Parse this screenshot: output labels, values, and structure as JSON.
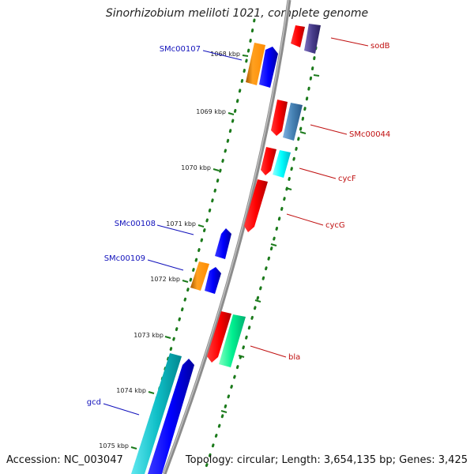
{
  "title": "Sinorhizobium meliloti 1021, complete genome",
  "footer": {
    "accession": "Accession: NC_003047",
    "topology": "Topology: circular; Length: 3,654,135 bp; Genes: 3,425"
  },
  "colors": {
    "backbone": "#8c8c8c",
    "tick": "#1b7a1b",
    "forward_label": "#1010bb",
    "reverse_label": "#c01010"
  },
  "ticks": [
    "1068 kbp",
    "1069 kbp",
    "1070 kbp",
    "1071 kbp",
    "1072 kbp",
    "1073 kbp",
    "1074 kbp",
    "1075 kbp"
  ],
  "genes_forward": [
    {
      "label": "SMc00107",
      "color": "#2020e0"
    },
    {
      "label": "SMc00108",
      "color": "#2020e0"
    },
    {
      "label": "SMc00109",
      "color": "#2020e0"
    },
    {
      "label": "gcd",
      "color": "#2020e0"
    }
  ],
  "genes_reverse": [
    {
      "label": "sodB",
      "color": "#e00000"
    },
    {
      "label": "SMc00044",
      "color": "#e00000"
    },
    {
      "label": "cycF",
      "color": "#e00000"
    },
    {
      "label": "cycG",
      "color": "#e00000"
    },
    {
      "label": "bla",
      "color": "#e00000"
    }
  ]
}
